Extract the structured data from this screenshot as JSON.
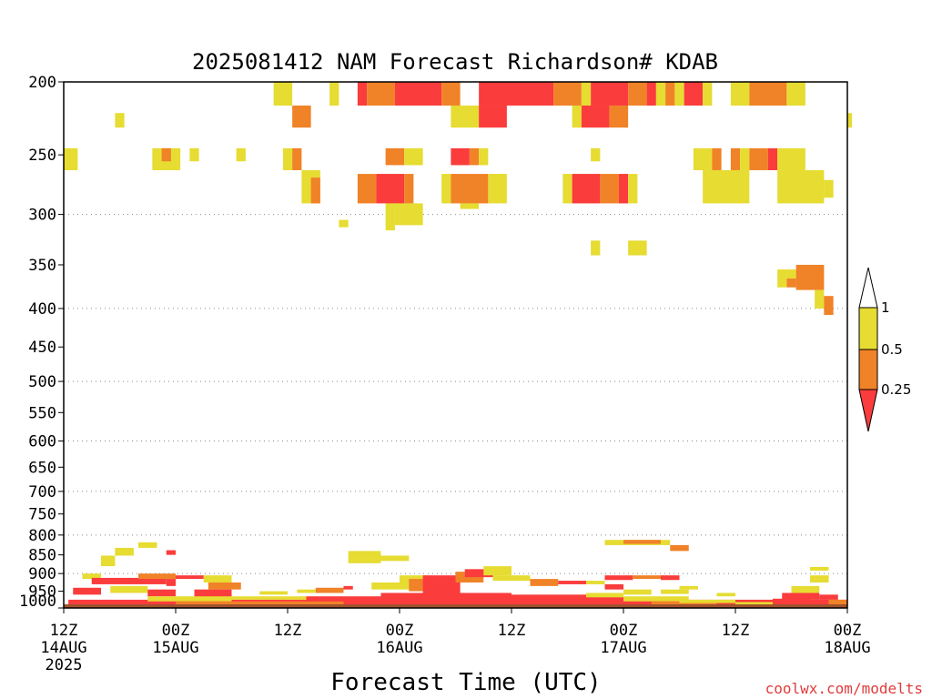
{
  "chart_data": {
    "type": "heatmap",
    "title": "2025081412 NAM Forecast Richardson# KDAB",
    "xlabel": "Forecast Time (UTC)",
    "ylabel": "",
    "watermark": "coolwx.com/modelts",
    "y_scale": "log",
    "ylim": [
      1000,
      200
    ],
    "xlim_hours": [
      0,
      84
    ],
    "y_ticks": [
      "200",
      "250",
      "300",
      "350",
      "400",
      "450",
      "500",
      "550",
      "600",
      "650",
      "700",
      "750",
      "800",
      "850",
      "900",
      "950",
      "1000"
    ],
    "y_gridlines": [
      300,
      400,
      500,
      600,
      700,
      800,
      900
    ],
    "x_ticks": [
      {
        "hour": 0,
        "line1": "12Z",
        "line2": "14AUG",
        "line3": "2025"
      },
      {
        "hour": 12,
        "line1": "00Z",
        "line2": "15AUG",
        "line3": ""
      },
      {
        "hour": 24,
        "line1": "12Z",
        "line2": "",
        "line3": ""
      },
      {
        "hour": 36,
        "line1": "00Z",
        "line2": "16AUG",
        "line3": ""
      },
      {
        "hour": 48,
        "line1": "12Z",
        "line2": "",
        "line3": ""
      },
      {
        "hour": 60,
        "line1": "00Z",
        "line2": "17AUG",
        "line3": ""
      },
      {
        "hour": 72,
        "line1": "12Z",
        "line2": "",
        "line3": ""
      },
      {
        "hour": 84,
        "line1": "00Z",
        "line2": "18AUG",
        "line3": ""
      }
    ],
    "colorbar": {
      "labels": [
        "1",
        "0.5",
        "0.25"
      ],
      "bins": [
        {
          "range": "0.5-1",
          "color": "#e6dc32"
        },
        {
          "range": "0.25-0.5",
          "color": "#f08228"
        },
        {
          "range": "<0.25",
          "color": "#fa3c3c"
        }
      ]
    },
    "colors": {
      "ground": "#a0522d",
      "yellow": "#e6dc32",
      "orange": "#f08228",
      "red": "#fa3c3c"
    },
    "cells": [
      {
        "h0": 22.5,
        "h1": 24.5,
        "p0": 200,
        "p1": 215,
        "c": "y"
      },
      {
        "h0": 28.5,
        "h1": 29.5,
        "p0": 200,
        "p1": 215,
        "c": "y"
      },
      {
        "h0": 31.5,
        "h1": 32.5,
        "p0": 200,
        "p1": 215,
        "c": "r"
      },
      {
        "h0": 32.5,
        "h1": 35.5,
        "p0": 200,
        "p1": 215,
        "c": "o"
      },
      {
        "h0": 35.5,
        "h1": 40.5,
        "p0": 200,
        "p1": 215,
        "c": "r"
      },
      {
        "h0": 40.5,
        "h1": 42.5,
        "p0": 200,
        "p1": 215,
        "c": "o"
      },
      {
        "h0": 44.5,
        "h1": 52.5,
        "p0": 200,
        "p1": 215,
        "c": "r"
      },
      {
        "h0": 52.5,
        "h1": 55.5,
        "p0": 200,
        "p1": 215,
        "c": "o"
      },
      {
        "h0": 55.5,
        "h1": 56.5,
        "p0": 200,
        "p1": 215,
        "c": "y"
      },
      {
        "h0": 56.5,
        "h1": 60.5,
        "p0": 200,
        "p1": 215,
        "c": "r"
      },
      {
        "h0": 60.5,
        "h1": 62.5,
        "p0": 200,
        "p1": 215,
        "c": "o"
      },
      {
        "h0": 62.5,
        "h1": 63.5,
        "p0": 200,
        "p1": 215,
        "c": "r"
      },
      {
        "h0": 63.5,
        "h1": 64.5,
        "p0": 200,
        "p1": 215,
        "c": "y"
      },
      {
        "h0": 64.5,
        "h1": 65.5,
        "p0": 200,
        "p1": 215,
        "c": "o"
      },
      {
        "h0": 65.5,
        "h1": 66.5,
        "p0": 200,
        "p1": 215,
        "c": "y"
      },
      {
        "h0": 66.5,
        "h1": 68.5,
        "p0": 200,
        "p1": 215,
        "c": "r"
      },
      {
        "h0": 68.5,
        "h1": 69.5,
        "p0": 200,
        "p1": 215,
        "c": "y"
      },
      {
        "h0": 71.5,
        "h1": 73.5,
        "p0": 200,
        "p1": 215,
        "c": "y"
      },
      {
        "h0": 73.5,
        "h1": 77.5,
        "p0": 200,
        "p1": 215,
        "c": "o"
      },
      {
        "h0": 77.5,
        "h1": 79.5,
        "p0": 200,
        "p1": 215,
        "c": "y"
      },
      {
        "h0": 24.5,
        "h1": 26.5,
        "p0": 215,
        "p1": 230,
        "c": "o"
      },
      {
        "h0": 41.5,
        "h1": 44.5,
        "p0": 215,
        "p1": 230,
        "c": "y"
      },
      {
        "h0": 44.5,
        "h1": 47.5,
        "p0": 215,
        "p1": 230,
        "c": "r"
      },
      {
        "h0": 54.5,
        "h1": 55.5,
        "p0": 215,
        "p1": 230,
        "c": "y"
      },
      {
        "h0": 55.5,
        "h1": 58.5,
        "p0": 215,
        "p1": 230,
        "c": "r"
      },
      {
        "h0": 58.5,
        "h1": 60.5,
        "p0": 215,
        "p1": 230,
        "c": "o"
      },
      {
        "h0": 5.5,
        "h1": 6.5,
        "p0": 220,
        "p1": 230,
        "c": "y"
      },
      {
        "h0": 84,
        "h1": 84.5,
        "p0": 220,
        "p1": 230,
        "c": "y"
      },
      {
        "h0": 0,
        "h1": 1.5,
        "p0": 245,
        "p1": 262,
        "c": "y"
      },
      {
        "h0": 9.5,
        "h1": 12.5,
        "p0": 245,
        "p1": 262,
        "c": "y"
      },
      {
        "h0": 10.5,
        "h1": 11.5,
        "p0": 245,
        "p1": 255,
        "c": "o"
      },
      {
        "h0": 13.5,
        "h1": 14.5,
        "p0": 245,
        "p1": 255,
        "c": "y"
      },
      {
        "h0": 18.5,
        "h1": 19.5,
        "p0": 245,
        "p1": 255,
        "c": "y"
      },
      {
        "h0": 23.5,
        "h1": 24.5,
        "p0": 245,
        "p1": 262,
        "c": "y"
      },
      {
        "h0": 24.5,
        "h1": 25.5,
        "p0": 245,
        "p1": 262,
        "c": "o"
      },
      {
        "h0": 34.5,
        "h1": 36.5,
        "p0": 245,
        "p1": 258,
        "c": "o"
      },
      {
        "h0": 36.5,
        "h1": 38.5,
        "p0": 245,
        "p1": 258,
        "c": "y"
      },
      {
        "h0": 41.5,
        "h1": 43.5,
        "p0": 245,
        "p1": 258,
        "c": "r"
      },
      {
        "h0": 43.5,
        "h1": 44.5,
        "p0": 245,
        "p1": 258,
        "c": "o"
      },
      {
        "h0": 44.5,
        "h1": 45.5,
        "p0": 245,
        "p1": 258,
        "c": "y"
      },
      {
        "h0": 56.5,
        "h1": 57.5,
        "p0": 245,
        "p1": 255,
        "c": "y"
      },
      {
        "h0": 67.5,
        "h1": 69.5,
        "p0": 245,
        "p1": 262,
        "c": "y"
      },
      {
        "h0": 69.5,
        "h1": 70.5,
        "p0": 245,
        "p1": 262,
        "c": "o"
      },
      {
        "h0": 71.5,
        "h1": 72.5,
        "p0": 245,
        "p1": 262,
        "c": "o"
      },
      {
        "h0": 72.5,
        "h1": 73.5,
        "p0": 245,
        "p1": 262,
        "c": "y"
      },
      {
        "h0": 73.5,
        "h1": 75.5,
        "p0": 245,
        "p1": 262,
        "c": "o"
      },
      {
        "h0": 75.5,
        "h1": 76.5,
        "p0": 245,
        "p1": 262,
        "c": "r"
      },
      {
        "h0": 76.5,
        "h1": 79.5,
        "p0": 245,
        "p1": 262,
        "c": "y"
      },
      {
        "h0": 25.5,
        "h1": 27.5,
        "p0": 262,
        "p1": 290,
        "c": "y"
      },
      {
        "h0": 26.5,
        "h1": 27.5,
        "p0": 268,
        "p1": 290,
        "c": "o"
      },
      {
        "h0": 31.5,
        "h1": 33.5,
        "p0": 265,
        "p1": 290,
        "c": "o"
      },
      {
        "h0": 33.5,
        "h1": 36.5,
        "p0": 265,
        "p1": 290,
        "c": "r"
      },
      {
        "h0": 36.5,
        "h1": 37.5,
        "p0": 265,
        "p1": 290,
        "c": "o"
      },
      {
        "h0": 35.5,
        "h1": 38.5,
        "p0": 290,
        "p1": 310,
        "c": "y"
      },
      {
        "h0": 34.5,
        "h1": 35.5,
        "p0": 290,
        "p1": 315,
        "c": "y"
      },
      {
        "h0": 40.5,
        "h1": 41.5,
        "p0": 265,
        "p1": 290,
        "c": "y"
      },
      {
        "h0": 41.5,
        "h1": 45.5,
        "p0": 265,
        "p1": 290,
        "c": "o"
      },
      {
        "h0": 45.5,
        "h1": 47.5,
        "p0": 265,
        "p1": 290,
        "c": "y"
      },
      {
        "h0": 42.5,
        "h1": 44.5,
        "p0": 290,
        "p1": 295,
        "c": "y"
      },
      {
        "h0": 53.5,
        "h1": 54.5,
        "p0": 265,
        "p1": 290,
        "c": "y"
      },
      {
        "h0": 54.5,
        "h1": 57.5,
        "p0": 265,
        "p1": 290,
        "c": "r"
      },
      {
        "h0": 57.5,
        "h1": 59.5,
        "p0": 265,
        "p1": 290,
        "c": "o"
      },
      {
        "h0": 59.5,
        "h1": 60.5,
        "p0": 265,
        "p1": 290,
        "c": "r"
      },
      {
        "h0": 60.5,
        "h1": 61.5,
        "p0": 265,
        "p1": 290,
        "c": "y"
      },
      {
        "h0": 68.5,
        "h1": 73.5,
        "p0": 262,
        "p1": 290,
        "c": "y"
      },
      {
        "h0": 76.5,
        "h1": 81.5,
        "p0": 262,
        "p1": 290,
        "c": "y"
      },
      {
        "h0": 81.5,
        "h1": 82.5,
        "p0": 270,
        "p1": 285,
        "c": "y"
      },
      {
        "h0": 29.5,
        "h1": 30.5,
        "p0": 305,
        "p1": 312,
        "c": "y"
      },
      {
        "h0": 56.5,
        "h1": 57.5,
        "p0": 325,
        "p1": 340,
        "c": "y"
      },
      {
        "h0": 60.5,
        "h1": 62.5,
        "p0": 325,
        "p1": 340,
        "c": "y"
      },
      {
        "h0": 76.5,
        "h1": 77.5,
        "p0": 355,
        "p1": 375,
        "c": "y"
      },
      {
        "h0": 77.5,
        "h1": 78.5,
        "p0": 355,
        "p1": 365,
        "c": "y"
      },
      {
        "h0": 78.5,
        "h1": 81.5,
        "p0": 350,
        "p1": 378,
        "c": "o"
      },
      {
        "h0": 77.5,
        "h1": 78.5,
        "p0": 365,
        "p1": 375,
        "c": "o"
      },
      {
        "h0": 80.5,
        "h1": 81.5,
        "p0": 378,
        "p1": 400,
        "c": "y"
      },
      {
        "h0": 81.5,
        "h1": 82.5,
        "p0": 385,
        "p1": 408,
        "c": "o"
      },
      {
        "h0": 8,
        "h1": 10,
        "p0": 818,
        "p1": 832,
        "c": "y"
      },
      {
        "h0": 5.5,
        "h1": 7.5,
        "p0": 832,
        "p1": 852,
        "c": "y"
      },
      {
        "h0": 4,
        "h1": 5.5,
        "p0": 852,
        "p1": 880,
        "c": "y"
      },
      {
        "h0": 11,
        "h1": 12,
        "p0": 838,
        "p1": 850,
        "c": "r"
      },
      {
        "h0": 30.5,
        "h1": 34,
        "p0": 840,
        "p1": 872,
        "c": "y"
      },
      {
        "h0": 34,
        "h1": 37,
        "p0": 852,
        "p1": 866,
        "c": "y"
      },
      {
        "h0": 58,
        "h1": 65,
        "p0": 812,
        "p1": 825,
        "c": "y"
      },
      {
        "h0": 60,
        "h1": 64,
        "p0": 812,
        "p1": 822,
        "c": "o"
      },
      {
        "h0": 65,
        "h1": 67,
        "p0": 825,
        "p1": 840,
        "c": "o"
      },
      {
        "h0": 80,
        "h1": 82,
        "p0": 882,
        "p1": 892,
        "c": "y"
      },
      {
        "h0": 2,
        "h1": 4,
        "p0": 900,
        "p1": 915,
        "c": "y"
      },
      {
        "h0": 3,
        "h1": 11,
        "p0": 912,
        "p1": 930,
        "c": "r"
      },
      {
        "h0": 8,
        "h1": 12,
        "p0": 900,
        "p1": 915,
        "c": "o"
      },
      {
        "h0": 12,
        "h1": 15,
        "p0": 905,
        "p1": 915,
        "c": "r"
      },
      {
        "h0": 11,
        "h1": 12,
        "p0": 915,
        "p1": 935,
        "c": "r"
      },
      {
        "h0": 15,
        "h1": 18,
        "p0": 905,
        "p1": 925,
        "c": "y"
      },
      {
        "h0": 15.5,
        "h1": 19,
        "p0": 925,
        "p1": 945,
        "c": "o"
      },
      {
        "h0": 1,
        "h1": 4,
        "p0": 940,
        "p1": 960,
        "c": "r"
      },
      {
        "h0": 5,
        "h1": 9,
        "p0": 935,
        "p1": 955,
        "c": "y"
      },
      {
        "h0": 9,
        "h1": 12,
        "p0": 945,
        "p1": 965,
        "c": "r"
      },
      {
        "h0": 14,
        "h1": 18,
        "p0": 945,
        "p1": 970,
        "c": "r"
      },
      {
        "h0": 21,
        "h1": 24,
        "p0": 950,
        "p1": 960,
        "c": "y"
      },
      {
        "h0": 25,
        "h1": 27,
        "p0": 945,
        "p1": 955,
        "c": "y"
      },
      {
        "h0": 27,
        "h1": 30,
        "p0": 940,
        "p1": 955,
        "c": "o"
      },
      {
        "h0": 30,
        "h1": 31,
        "p0": 935,
        "p1": 945,
        "c": "r"
      },
      {
        "h0": 33,
        "h1": 37,
        "p0": 925,
        "p1": 945,
        "c": "y"
      },
      {
        "h0": 36,
        "h1": 39,
        "p0": 905,
        "p1": 925,
        "c": "y"
      },
      {
        "h0": 37,
        "h1": 41,
        "p0": 915,
        "p1": 950,
        "c": "o"
      },
      {
        "h0": 38.5,
        "h1": 42.5,
        "p0": 905,
        "p1": 965,
        "c": "r"
      },
      {
        "h0": 42,
        "h1": 45,
        "p0": 895,
        "p1": 925,
        "c": "o"
      },
      {
        "h0": 43,
        "h1": 46,
        "p0": 888,
        "p1": 910,
        "c": "r"
      },
      {
        "h0": 45,
        "h1": 48,
        "p0": 880,
        "p1": 905,
        "c": "y"
      },
      {
        "h0": 46,
        "h1": 50,
        "p0": 905,
        "p1": 920,
        "c": "y"
      },
      {
        "h0": 50,
        "h1": 53,
        "p0": 915,
        "p1": 935,
        "c": "o"
      },
      {
        "h0": 53,
        "h1": 56,
        "p0": 920,
        "p1": 930,
        "c": "r"
      },
      {
        "h0": 56,
        "h1": 58,
        "p0": 920,
        "p1": 930,
        "c": "y"
      },
      {
        "h0": 58,
        "h1": 61,
        "p0": 905,
        "p1": 918,
        "c": "r"
      },
      {
        "h0": 61,
        "h1": 64,
        "p0": 905,
        "p1": 915,
        "c": "o"
      },
      {
        "h0": 64,
        "h1": 66,
        "p0": 905,
        "p1": 918,
        "c": "r"
      },
      {
        "h0": 58,
        "h1": 60,
        "p0": 930,
        "p1": 945,
        "c": "r"
      },
      {
        "h0": 60,
        "h1": 63,
        "p0": 945,
        "p1": 960,
        "c": "y"
      },
      {
        "h0": 64,
        "h1": 67,
        "p0": 945,
        "p1": 958,
        "c": "y"
      },
      {
        "h0": 66,
        "h1": 68,
        "p0": 935,
        "p1": 945,
        "c": "y"
      },
      {
        "h0": 70,
        "h1": 72,
        "p0": 955,
        "p1": 965,
        "c": "y"
      },
      {
        "h0": 78,
        "h1": 81,
        "p0": 935,
        "p1": 955,
        "c": "y"
      },
      {
        "h0": 77,
        "h1": 81,
        "p0": 955,
        "p1": 975,
        "c": "r"
      },
      {
        "h0": 80,
        "h1": 82,
        "p0": 905,
        "p1": 925,
        "c": "y"
      },
      {
        "h0": 81,
        "h1": 83,
        "p0": 960,
        "p1": 975,
        "c": "r"
      },
      {
        "h0": 0.5,
        "h1": 84,
        "p0": 975,
        "p1": 1000,
        "c": "r"
      },
      {
        "h0": 0,
        "h1": 1.5,
        "p0": 990,
        "p1": 1000,
        "c": "r"
      },
      {
        "h0": 9,
        "h1": 18,
        "p0": 965,
        "p1": 980,
        "c": "y"
      },
      {
        "h0": 12,
        "h1": 30,
        "p0": 980,
        "p1": 990,
        "c": "o"
      },
      {
        "h0": 18,
        "h1": 26,
        "p0": 965,
        "p1": 975,
        "c": "y"
      },
      {
        "h0": 26,
        "h1": 34,
        "p0": 965,
        "p1": 980,
        "c": "r"
      },
      {
        "h0": 34,
        "h1": 48,
        "p0": 955,
        "p1": 980,
        "c": "r"
      },
      {
        "h0": 48,
        "h1": 60,
        "p0": 960,
        "p1": 980,
        "c": "r"
      },
      {
        "h0": 56,
        "h1": 60,
        "p0": 955,
        "p1": 968,
        "c": "y"
      },
      {
        "h0": 60,
        "h1": 67,
        "p0": 965,
        "p1": 980,
        "c": "y"
      },
      {
        "h0": 63,
        "h1": 70,
        "p0": 980,
        "p1": 990,
        "c": "o"
      },
      {
        "h0": 66,
        "h1": 72,
        "p0": 975,
        "p1": 985,
        "c": "y"
      },
      {
        "h0": 72,
        "h1": 76,
        "p0": 982,
        "p1": 992,
        "c": "y"
      },
      {
        "h0": 76,
        "h1": 80,
        "p0": 972,
        "p1": 990,
        "c": "r"
      },
      {
        "h0": 82,
        "h1": 84,
        "p0": 975,
        "p1": 990,
        "c": "o"
      }
    ]
  }
}
